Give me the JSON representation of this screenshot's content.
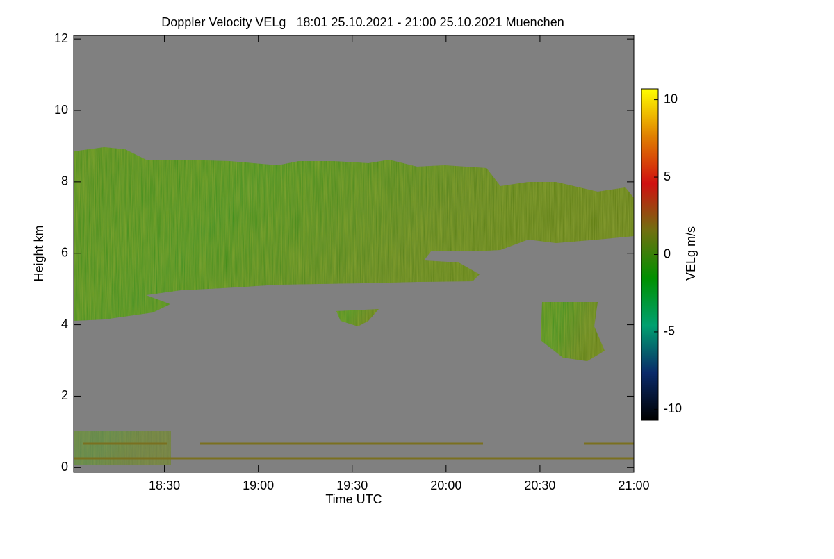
{
  "chart_data": {
    "type": "heatmap",
    "title": "Doppler Velocity VELg   18:01 25.10.2021 - 21:00 25.10.2021 Muenchen",
    "x_label": "Time UTC",
    "y_label": "Height km",
    "colorbar_label": "VELg m/s",
    "xlim": [
      1081,
      1260
    ],
    "xticks": [
      {
        "value": 1110,
        "label": "18:30"
      },
      {
        "value": 1140,
        "label": "19:00"
      },
      {
        "value": 1170,
        "label": "19:30"
      },
      {
        "value": 1200,
        "label": "20:00"
      },
      {
        "value": 1230,
        "label": "20:30"
      },
      {
        "value": 1260,
        "label": "21:00"
      }
    ],
    "ylim": [
      -0.13,
      12.1
    ],
    "yticks": [
      0,
      2,
      4,
      6,
      8,
      10,
      12
    ],
    "clim": [
      -10.7,
      10.7
    ],
    "cticks": [
      10,
      5,
      0,
      -5,
      -10
    ],
    "colormap": [
      "#000000",
      "#0a2a6a",
      "#00a070",
      "#009000",
      "#707010",
      "#d01010",
      "#e08000",
      "#ffff00"
    ],
    "background": "#808080"
  }
}
